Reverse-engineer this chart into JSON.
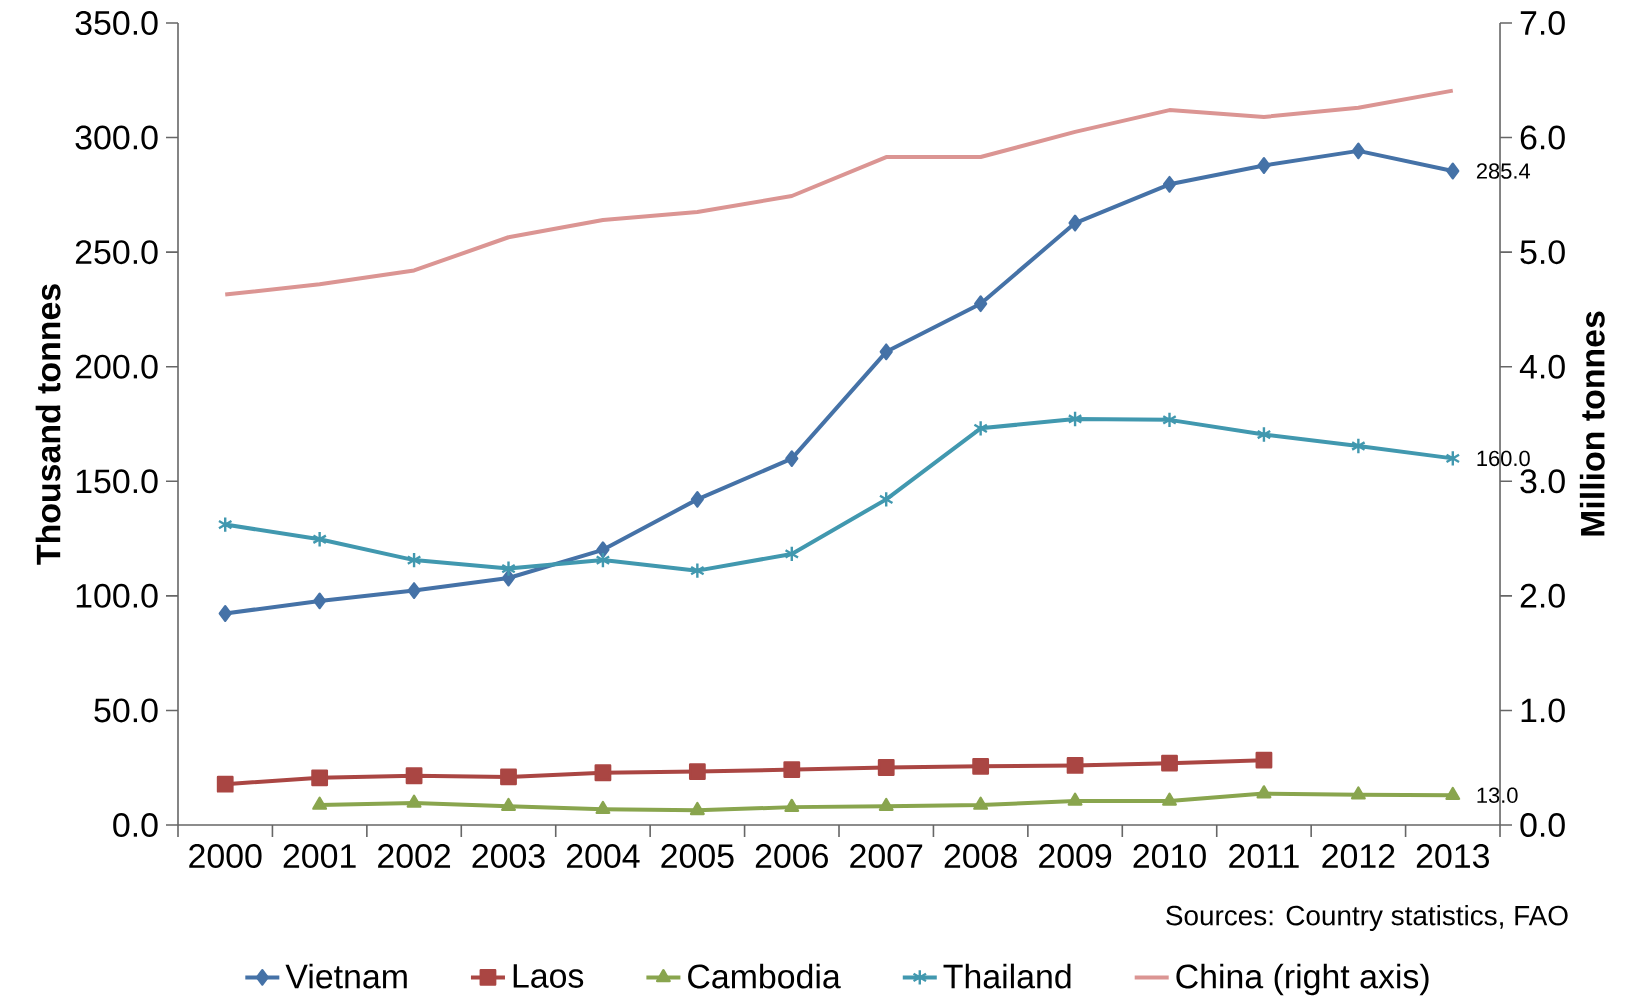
{
  "chart_data": {
    "type": "line",
    "categories": [
      "2000",
      "2001",
      "2002",
      "2003",
      "2004",
      "2005",
      "2006",
      "2007",
      "2008",
      "2009",
      "2010",
      "2011",
      "2012",
      "2013"
    ],
    "series": [
      {
        "name": "Vietnam",
        "color": "#4572a7",
        "marker": "diamond",
        "values": [
          92.3,
          97.8,
          102.3,
          107.8,
          120.1,
          142.1,
          159.9,
          206.5,
          227.5,
          262.7,
          279.6,
          287.8,
          294.2,
          285.4
        ],
        "value_labels": [
          null,
          null,
          null,
          null,
          null,
          null,
          null,
          null,
          null,
          null,
          null,
          null,
          null,
          "285.4"
        ]
      },
      {
        "name": "Laos",
        "color": "#aa4643",
        "marker": "square",
        "values": [
          17.8,
          20.6,
          21.5,
          21.0,
          22.8,
          23.3,
          24.2,
          25.1,
          25.6,
          26.0,
          27.0,
          28.3,
          null,
          null
        ]
      },
      {
        "name": "Cambodia",
        "color": "#89a54e",
        "marker": "triangle",
        "values": [
          null,
          8.7,
          9.6,
          8.2,
          6.9,
          6.4,
          7.8,
          8.2,
          8.7,
          10.5,
          10.5,
          13.7,
          13.2,
          13.0
        ],
        "value_labels": [
          null,
          null,
          null,
          null,
          null,
          null,
          null,
          null,
          null,
          null,
          null,
          null,
          null,
          "13.0"
        ]
      },
      {
        "name": "Thailand",
        "color": "#4198af",
        "marker": "cross",
        "values": [
          131.1,
          124.7,
          115.6,
          111.9,
          115.6,
          111.0,
          118.3,
          142.1,
          173.1,
          177.2,
          176.8,
          170.4,
          165.4,
          160.0
        ],
        "value_labels": [
          null,
          null,
          null,
          null,
          null,
          null,
          null,
          null,
          null,
          null,
          null,
          null,
          null,
          "160.0"
        ]
      },
      {
        "name": "China (right axis)",
        "color": "#db9593",
        "marker": "none",
        "axis": "y2",
        "values": [
          4.63,
          4.72,
          4.84,
          5.13,
          5.28,
          5.35,
          5.49,
          5.83,
          5.83,
          6.05,
          6.24,
          6.18,
          6.26,
          6.41
        ]
      }
    ],
    "ylabel": "Thousand tonnes",
    "y2label": "Million tonnes",
    "ylim": [
      0,
      350
    ],
    "yticks": [
      {
        "value": 0,
        "label": "0.0"
      },
      {
        "value": 50,
        "label": "50.0"
      },
      {
        "value": 100,
        "label": "100.0"
      },
      {
        "value": 150,
        "label": "150.0"
      },
      {
        "value": 200,
        "label": "200.0"
      },
      {
        "value": 250,
        "label": "250.0"
      },
      {
        "value": 300,
        "label": "300.0"
      },
      {
        "value": 350,
        "label": "350.0"
      }
    ],
    "y2lim": [
      0,
      7
    ],
    "y2ticks": [
      {
        "value": 0,
        "label": "0.0"
      },
      {
        "value": 1,
        "label": "1.0"
      },
      {
        "value": 2,
        "label": "2.0"
      },
      {
        "value": 3,
        "label": "3.0"
      },
      {
        "value": 4,
        "label": "4.0"
      },
      {
        "value": 5,
        "label": "5.0"
      },
      {
        "value": 6,
        "label": "6.0"
      },
      {
        "value": 7,
        "label": "7.0"
      }
    ],
    "legend": "bottom",
    "annotations": [
      "Sources: Country statistics, FAO"
    ]
  }
}
